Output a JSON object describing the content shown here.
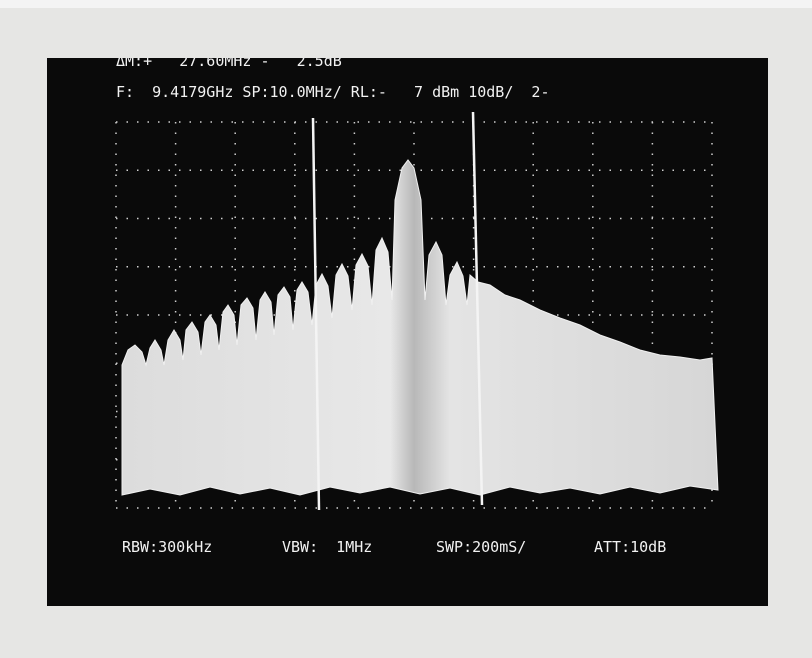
{
  "readout": {
    "delta_marker": "ΔM:+   27.60MHz -   2.5dB",
    "settings": "F:  9.4179GHz SP:10.0MHz/ RL:-   7 dBm 10dB/  2-"
  },
  "footer": {
    "rbw": "RBW:300kHz",
    "vbw": "VBW:  1MHz",
    "swp": "SWP:200mS/",
    "att": "ATT:10dB"
  }
}
